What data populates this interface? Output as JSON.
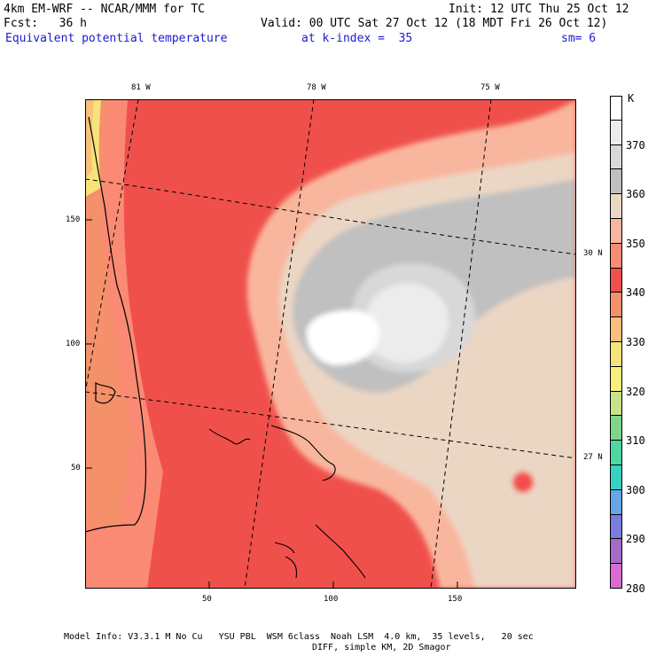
{
  "header": {
    "model_line": "4km EM-WRF -- NCAR/MMM for TC",
    "init_line": "Init: 12 UTC Thu 25 Oct 12",
    "fcst_line": "Fcst:   36 h",
    "valid_line": "Valid: 00 UTC Sat 27 Oct 12 (18 MDT Fri 26 Oct 12)",
    "field_name": "Equivalent potential temperature",
    "level_text": "at k-index =  35",
    "smoothing_text": "sm= 6"
  },
  "map": {
    "top_lon_labels": [
      "81 W",
      "78 W",
      "75 W"
    ],
    "right_lat_labels": [
      "30 N",
      "27 N"
    ],
    "x_axis_ticks": [
      "50",
      "100",
      "150"
    ],
    "y_axis_ticks": [
      "150",
      "100",
      "50"
    ],
    "x_range": [
      0,
      198
    ],
    "y_range": [
      0,
      198
    ]
  },
  "colorbar": {
    "unit": "K",
    "levels": [
      "370",
      "360",
      "350",
      "340",
      "330",
      "320",
      "310",
      "300",
      "290",
      "280"
    ],
    "colors": [
      "#ffffff",
      "#ececec",
      "#d8d8d8",
      "#c0c0c0",
      "#ebd6c4",
      "#f9b69e",
      "#fa8a74",
      "#f0504b",
      "#f4916a",
      "#f9c07c",
      "#f8e27a",
      "#f8f07a",
      "#c8e28a",
      "#7fd68a",
      "#4cd8a0",
      "#36d3c2",
      "#66a6e8",
      "#7a7ce0",
      "#a46cc8",
      "#d96bd1"
    ]
  },
  "footer": {
    "line1": "Model Info: V3.3.1 M No Cu   YSU PBL  WSM 6class  Noah LSM  4.0 km,  35 levels,   20 sec",
    "line2": "DIFF, simple KM, 2D Smagor"
  }
}
